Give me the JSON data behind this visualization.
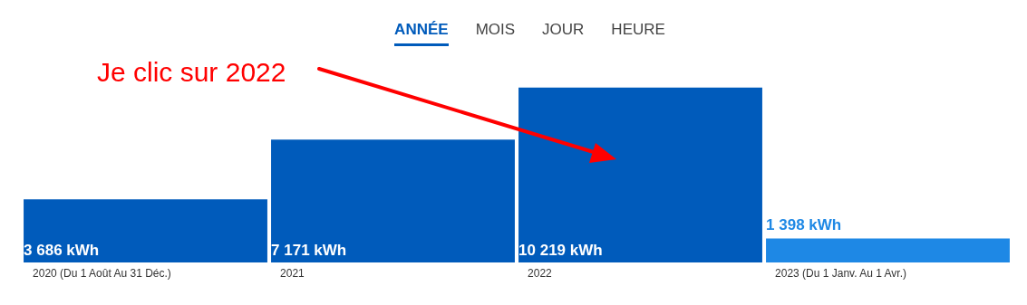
{
  "chart_data": {
    "type": "bar",
    "categories": [
      "2020 (Du 1 Août Au 31 Déc.)",
      "2021",
      "2022",
      "2023 (Du 1 Janv. Au 1 Avr.)"
    ],
    "values": [
      3686,
      7171,
      10219,
      1398
    ],
    "colors": [
      "#005bbb",
      "#005bbb",
      "#005bbb",
      "#1e88e5"
    ],
    "value_labels": [
      "3 686 kWh",
      "7 171 kWh",
      "10 219 kWh",
      "1 398 kWh"
    ],
    "grid": false,
    "legend": false,
    "annotations": [
      "ANNÉE",
      "MOIS",
      "JOUR",
      "HEURE",
      "Je clic sur 2022"
    ]
  }
}
